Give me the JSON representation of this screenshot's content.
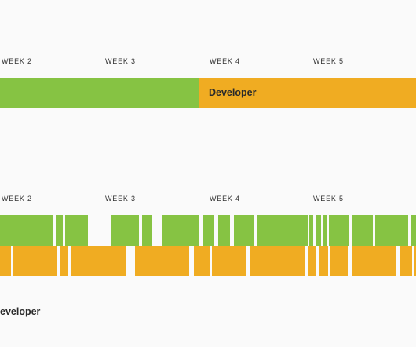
{
  "colors": {
    "green": "#86c343",
    "orange": "#f0ac22",
    "background": "#fafafa",
    "text": "#2b2b2b"
  },
  "top_timeline": {
    "weeks": [
      "WEEK 2",
      "WEEK 3",
      "WEEK 4",
      "WEEK 5"
    ],
    "designer_bar_color": "green",
    "developer_label": "Developer"
  },
  "bottom_timeline": {
    "weeks": [
      "WEEK 2",
      "WEEK 3",
      "WEEK 4",
      "WEEK 5"
    ],
    "developer_label_fragment": "eveloper",
    "green_segment_count": 17,
    "orange_segment_count": 14
  }
}
